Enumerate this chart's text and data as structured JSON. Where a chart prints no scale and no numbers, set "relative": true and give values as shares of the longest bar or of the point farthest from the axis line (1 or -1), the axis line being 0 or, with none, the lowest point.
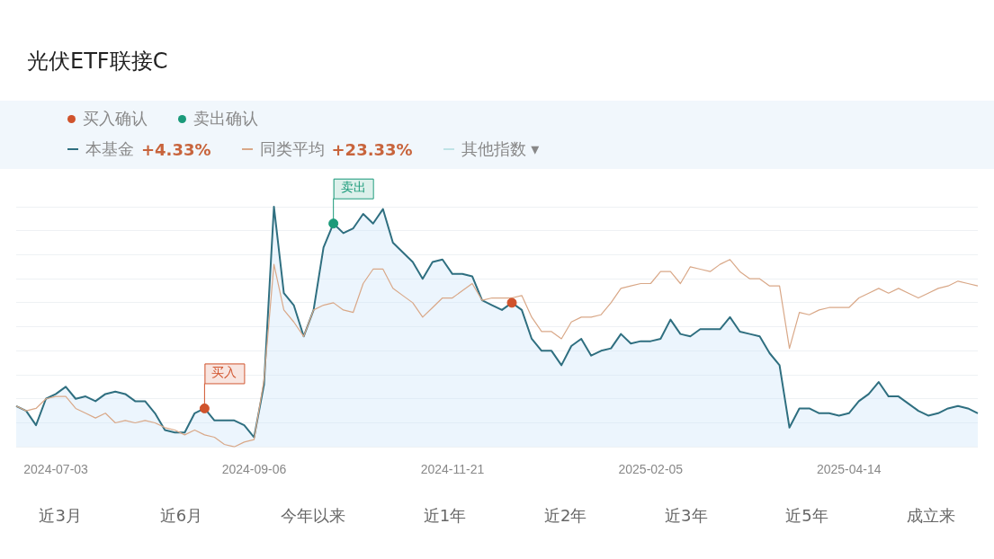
{
  "chart_data": {
    "type": "line",
    "title": "光伏ETF联接C",
    "relative": true,
    "grid": "y",
    "legend": "top",
    "categories": [
      null,
      null,
      null,
      null,
      "2024-07-03",
      null,
      null,
      null,
      null,
      null,
      null,
      null,
      null,
      null,
      null,
      null,
      null,
      null,
      null,
      null,
      null,
      null,
      null,
      null,
      "2024-09-06",
      null,
      null,
      null,
      null,
      null,
      null,
      null,
      null,
      null,
      null,
      null,
      null,
      null,
      null,
      null,
      null,
      null,
      null,
      null,
      "2024-11-21",
      null,
      null,
      null,
      null,
      null,
      null,
      null,
      null,
      null,
      null,
      null,
      null,
      null,
      null,
      null,
      null,
      null,
      null,
      null,
      "2025-02-05",
      null,
      null,
      null,
      null,
      null,
      null,
      null,
      null,
      null,
      null,
      null,
      null,
      null,
      null,
      null,
      null,
      null,
      null,
      null,
      "2025-04-14",
      null,
      null,
      null,
      null,
      null,
      null,
      null,
      null,
      null,
      null,
      null,
      null,
      null
    ],
    "series": [
      {
        "name": "本基金",
        "type": "area",
        "color": "#2f6f80",
        "values": [
          0.17,
          0.15,
          0.09,
          0.2,
          0.22,
          0.25,
          0.2,
          0.21,
          0.19,
          0.22,
          0.23,
          0.22,
          0.19,
          0.19,
          0.14,
          0.07,
          0.06,
          0.06,
          0.14,
          0.16,
          0.11,
          0.11,
          0.11,
          0.09,
          0.04,
          0.26,
          1.0,
          0.64,
          0.59,
          0.46,
          0.57,
          0.83,
          0.93,
          0.89,
          0.91,
          0.97,
          0.93,
          0.99,
          0.85,
          0.81,
          0.77,
          0.7,
          0.77,
          0.78,
          0.72,
          0.72,
          0.71,
          0.61,
          0.59,
          0.57,
          0.6,
          0.57,
          0.45,
          0.4,
          0.4,
          0.34,
          0.42,
          0.45,
          0.38,
          0.4,
          0.41,
          0.47,
          0.43,
          0.44,
          0.44,
          0.45,
          0.53,
          0.47,
          0.46,
          0.49,
          0.49,
          0.49,
          0.54,
          0.48,
          0.47,
          0.46,
          0.39,
          0.34,
          0.08,
          0.16,
          0.16,
          0.14,
          0.14,
          0.13,
          0.14,
          0.19,
          0.22,
          0.27,
          0.21,
          0.21,
          0.18,
          0.15,
          0.13,
          0.14,
          0.16,
          0.17,
          0.16,
          0.14
        ]
      },
      {
        "name": "同类平均",
        "color": "#d9a888",
        "values": [
          0.17,
          0.15,
          0.16,
          0.2,
          0.21,
          0.21,
          0.16,
          0.14,
          0.12,
          0.14,
          0.1,
          0.11,
          0.1,
          0.11,
          0.1,
          0.08,
          0.07,
          0.05,
          0.07,
          0.05,
          0.04,
          0.01,
          0,
          0.02,
          0.03,
          0.28,
          0.76,
          0.57,
          0.52,
          0.46,
          0.57,
          0.59,
          0.6,
          0.57,
          0.56,
          0.68,
          0.74,
          0.74,
          0.66,
          0.63,
          0.6,
          0.54,
          0.58,
          0.62,
          0.62,
          0.65,
          0.68,
          0.61,
          0.62,
          0.62,
          0.62,
          0.63,
          0.54,
          0.48,
          0.48,
          0.45,
          0.52,
          0.54,
          0.54,
          0.55,
          0.6,
          0.66,
          0.67,
          0.68,
          0.68,
          0.73,
          0.73,
          0.68,
          0.75,
          0.74,
          0.73,
          0.76,
          0.78,
          0.73,
          0.7,
          0.7,
          0.67,
          0.67,
          0.41,
          0.56,
          0.55,
          0.57,
          0.58,
          0.58,
          0.58,
          0.62,
          0.64,
          0.66,
          0.64,
          0.66,
          0.64,
          0.62,
          0.64,
          0.66,
          0.67,
          0.69,
          0.68,
          0.67
        ]
      },
      {
        "name": "买入确认",
        "type": "scatter",
        "color": "#d0532c",
        "values": [
          null,
          null,
          null,
          null,
          null,
          null,
          null,
          null,
          null,
          null,
          null,
          null,
          null,
          null,
          null,
          null,
          null,
          null,
          null,
          0.16,
          null,
          null,
          null,
          null,
          null,
          null,
          null,
          null,
          null,
          null,
          null,
          null,
          null,
          null,
          null,
          null,
          null,
          null,
          null,
          null,
          null,
          null,
          null,
          null,
          null,
          null,
          null,
          null,
          null,
          null,
          0.6,
          null,
          null,
          null,
          null,
          null,
          null,
          null,
          null,
          null,
          null,
          null,
          null,
          null,
          null,
          null,
          null,
          null,
          null,
          null,
          null,
          null,
          null,
          null,
          null,
          null,
          null,
          null,
          null,
          null,
          null,
          null,
          null,
          null,
          null,
          null,
          null,
          null,
          null,
          null,
          null,
          null,
          null,
          null,
          null,
          null,
          null,
          null
        ]
      },
      {
        "name": "卖出确认",
        "type": "scatter",
        "color": "#1a9a7a",
        "values": [
          null,
          null,
          null,
          null,
          null,
          null,
          null,
          null,
          null,
          null,
          null,
          null,
          null,
          null,
          null,
          null,
          null,
          null,
          null,
          null,
          null,
          null,
          null,
          null,
          null,
          null,
          null,
          null,
          null,
          null,
          null,
          null,
          0.93,
          null,
          null,
          null,
          null,
          null,
          null,
          null,
          null,
          null,
          null,
          null,
          null,
          null,
          null,
          null,
          null,
          null,
          null,
          null,
          null,
          null,
          null,
          null,
          null,
          null,
          null,
          null,
          null,
          null,
          null,
          null,
          null,
          null,
          null,
          null,
          null,
          null,
          null,
          null,
          null,
          null,
          null,
          null,
          null,
          null,
          null,
          null,
          null,
          null,
          null,
          null,
          null,
          null,
          null,
          null,
          null,
          null,
          null,
          null,
          null,
          null,
          null,
          null,
          null,
          null
        ]
      }
    ],
    "annotations": [
      "买入",
      "卖出",
      "+4.33%",
      "+23.33%",
      "其他指数 ▾",
      "近3月",
      "近6月",
      "今年以来",
      "近1年",
      "近2年",
      "近3年",
      "近5年",
      "成立来"
    ]
  }
}
